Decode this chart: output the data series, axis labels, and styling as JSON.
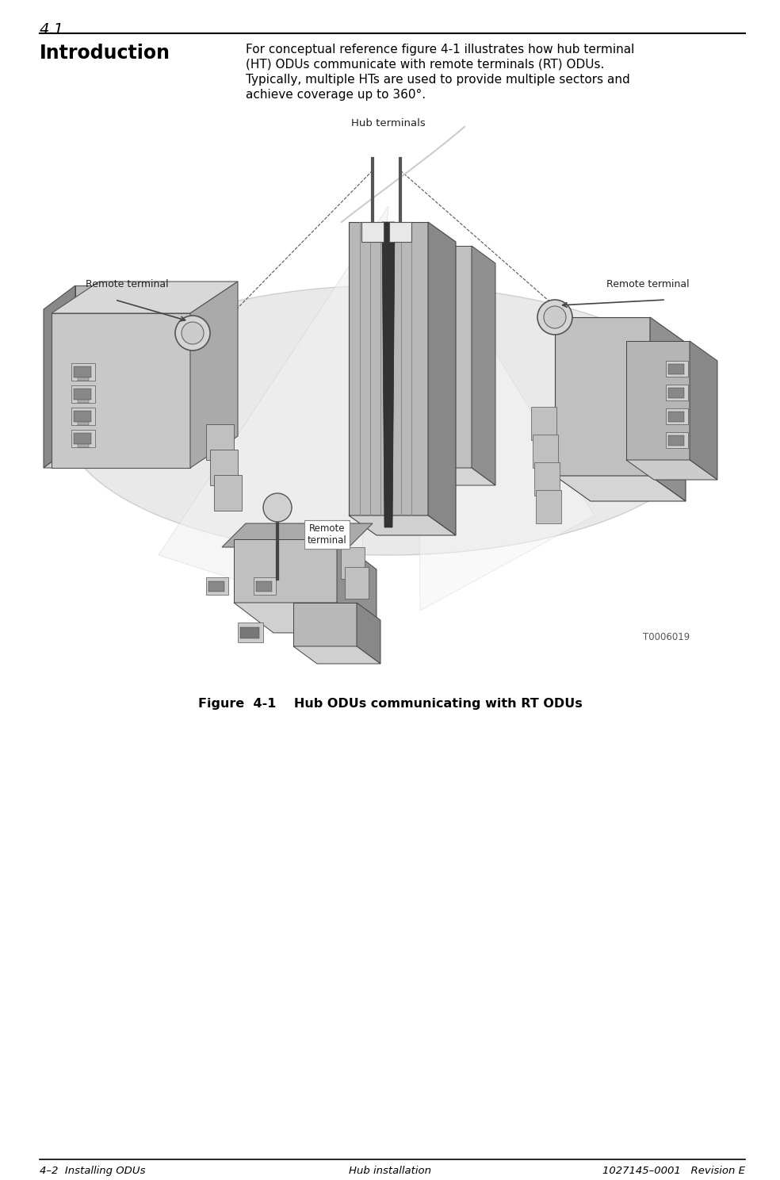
{
  "section_number": "4.1",
  "section_title": "Introduction",
  "body_line1": "For conceptual reference figure 4-1 illustrates how hub terminal",
  "body_line2": "(HT) ODUs communicate with remote terminals (RT) ODUs.",
  "body_line3": "Typically, multiple HTs are used to provide multiple sectors and",
  "body_line4": "achieve coverage up to 360°.",
  "figure_caption": "Figure  4-1    Hub ODUs communicating with RT ODUs",
  "footer_left": "4–2  Installing ODUs",
  "footer_center": "Hub installation",
  "footer_right": "1027145–0001   Revision E",
  "bg_color": "#ffffff",
  "text_color": "#000000",
  "label_hub": "Hub terminals",
  "label_remote_left": "Remote terminal",
  "label_remote_right": "Remote terminal",
  "label_remote_front": "Remote\nterminal",
  "label_t0006019": "T0006019"
}
